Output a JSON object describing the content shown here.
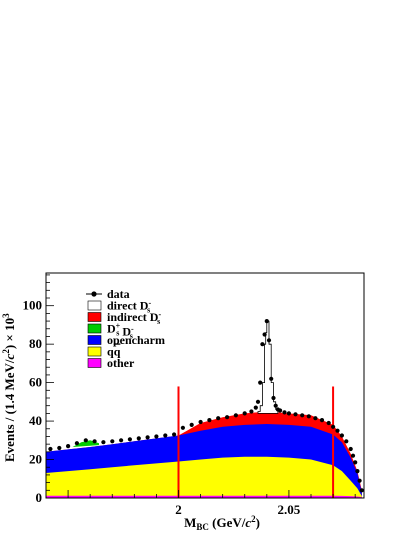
{
  "chart_data": {
    "type": "area",
    "xlabel": "M_BC (GeV/c^2)",
    "ylabel": "Events / (1.4 MeV/c^2) × 10^3",
    "xlim": [
      1.94,
      2.084
    ],
    "ylim": [
      0,
      117
    ],
    "x_ticks": [
      {
        "value": 2.0,
        "label": "2"
      },
      {
        "value": 2.05,
        "label": "2.05"
      }
    ],
    "y_ticks": [
      {
        "value": 0,
        "label": "0"
      },
      {
        "value": 20,
        "label": "20"
      },
      {
        "value": 40,
        "label": "40"
      },
      {
        "value": 60,
        "label": "60"
      },
      {
        "value": 80,
        "label": "80"
      },
      {
        "value": 100,
        "label": "100"
      }
    ],
    "grid": false,
    "legend_position": "top-left",
    "legend": [
      {
        "label": "data",
        "marker": "point",
        "color": "#000000"
      },
      {
        "label": "direct D_s^-",
        "marker": "box",
        "color": "#ffffff"
      },
      {
        "label": "indirect D_s^-",
        "marker": "box",
        "color": "#ff0000"
      },
      {
        "label": "D_s^+ D_s^-",
        "marker": "box",
        "color": "#00cc00"
      },
      {
        "label": "opencharm",
        "marker": "box",
        "color": "#0000ff"
      },
      {
        "label": "qq̄",
        "marker": "box",
        "color": "#ffff00"
      },
      {
        "label": "other",
        "marker": "box",
        "color": "#ff00ff"
      }
    ],
    "vertical_lines": {
      "color": "#ff0000",
      "x": [
        2.0,
        2.07
      ],
      "height": 58
    },
    "x_nodes": [
      1.94,
      1.96,
      1.97,
      1.98,
      1.99,
      2.0,
      2.01,
      2.02,
      2.03,
      2.04,
      2.05,
      2.06,
      2.07,
      2.074,
      2.078,
      2.081,
      2.083
    ],
    "series": [
      {
        "name": "other",
        "color": "#ff00ff",
        "cumulative": [
          1.2,
          1.2,
          1.2,
          1.2,
          1.2,
          1.2,
          1.2,
          1.2,
          1.2,
          1.2,
          1.2,
          1.2,
          1.2,
          1.1,
          1.0,
          0.8,
          0.5
        ]
      },
      {
        "name": "qq̄",
        "color": "#ffff00",
        "cumulative": [
          13,
          15,
          16,
          17,
          18,
          19,
          20,
          21,
          21.5,
          21.5,
          21,
          20,
          17,
          14,
          9,
          5,
          1
        ]
      },
      {
        "name": "opencharm",
        "color": "#0000ff",
        "cumulative": [
          24,
          26.5,
          28,
          29.5,
          31,
          32.5,
          35,
          37,
          38,
          38.5,
          38,
          37,
          33,
          29,
          21,
          13,
          3
        ]
      },
      {
        "name": "indirect D_s^-",
        "color": "#ff0000",
        "cumulative": [
          24,
          26.5,
          28,
          29.5,
          31,
          32.5,
          39,
          42,
          44,
          45,
          44,
          43,
          38,
          32,
          23,
          14,
          4
        ]
      }
    ],
    "green_bump": {
      "name": "D_s^+ D_s^-",
      "color": "#00cc00",
      "x": [
        1.952,
        1.956,
        1.96,
        1.964
      ],
      "top": [
        26.5,
        29,
        30,
        28.5
      ]
    },
    "direct_peak": {
      "name": "direct D_s^-",
      "color": "#ffffff",
      "x": [
        2.036,
        2.037,
        2.038,
        2.039,
        2.0395,
        2.04,
        2.041,
        2.042,
        2.043,
        2.044
      ],
      "y": [
        45,
        48,
        60,
        80,
        86,
        92,
        80,
        60,
        50,
        46
      ]
    },
    "data": {
      "x": [
        1.942,
        1.946,
        1.95,
        1.954,
        1.958,
        1.962,
        1.966,
        1.97,
        1.974,
        1.978,
        1.982,
        1.986,
        1.99,
        1.994,
        1.998,
        2.002,
        2.006,
        2.01,
        2.014,
        2.018,
        2.022,
        2.026,
        2.03,
        2.033,
        2.035,
        2.036,
        2.037,
        2.038,
        2.039,
        2.04,
        2.041,
        2.042,
        2.043,
        2.044,
        2.045,
        2.046,
        2.048,
        2.05,
        2.053,
        2.056,
        2.059,
        2.062,
        2.065,
        2.068,
        2.07,
        2.072,
        2.074,
        2.076,
        2.078,
        2.079,
        2.08,
        2.081,
        2.082,
        2.083
      ],
      "y": [
        25.5,
        26,
        27,
        28.5,
        30,
        29.5,
        29,
        29.5,
        30,
        30.5,
        31,
        31.5,
        32,
        32.5,
        33,
        36.5,
        38,
        39.5,
        40.5,
        41.5,
        42,
        43,
        44,
        45,
        47,
        50,
        60,
        80,
        85,
        92,
        82,
        62,
        52,
        48,
        46,
        45.5,
        44.5,
        44,
        43.5,
        43,
        42.5,
        41.5,
        40.5,
        39,
        37,
        35,
        32.5,
        29.5,
        25.5,
        22,
        18.5,
        14,
        9,
        4
      ]
    }
  }
}
